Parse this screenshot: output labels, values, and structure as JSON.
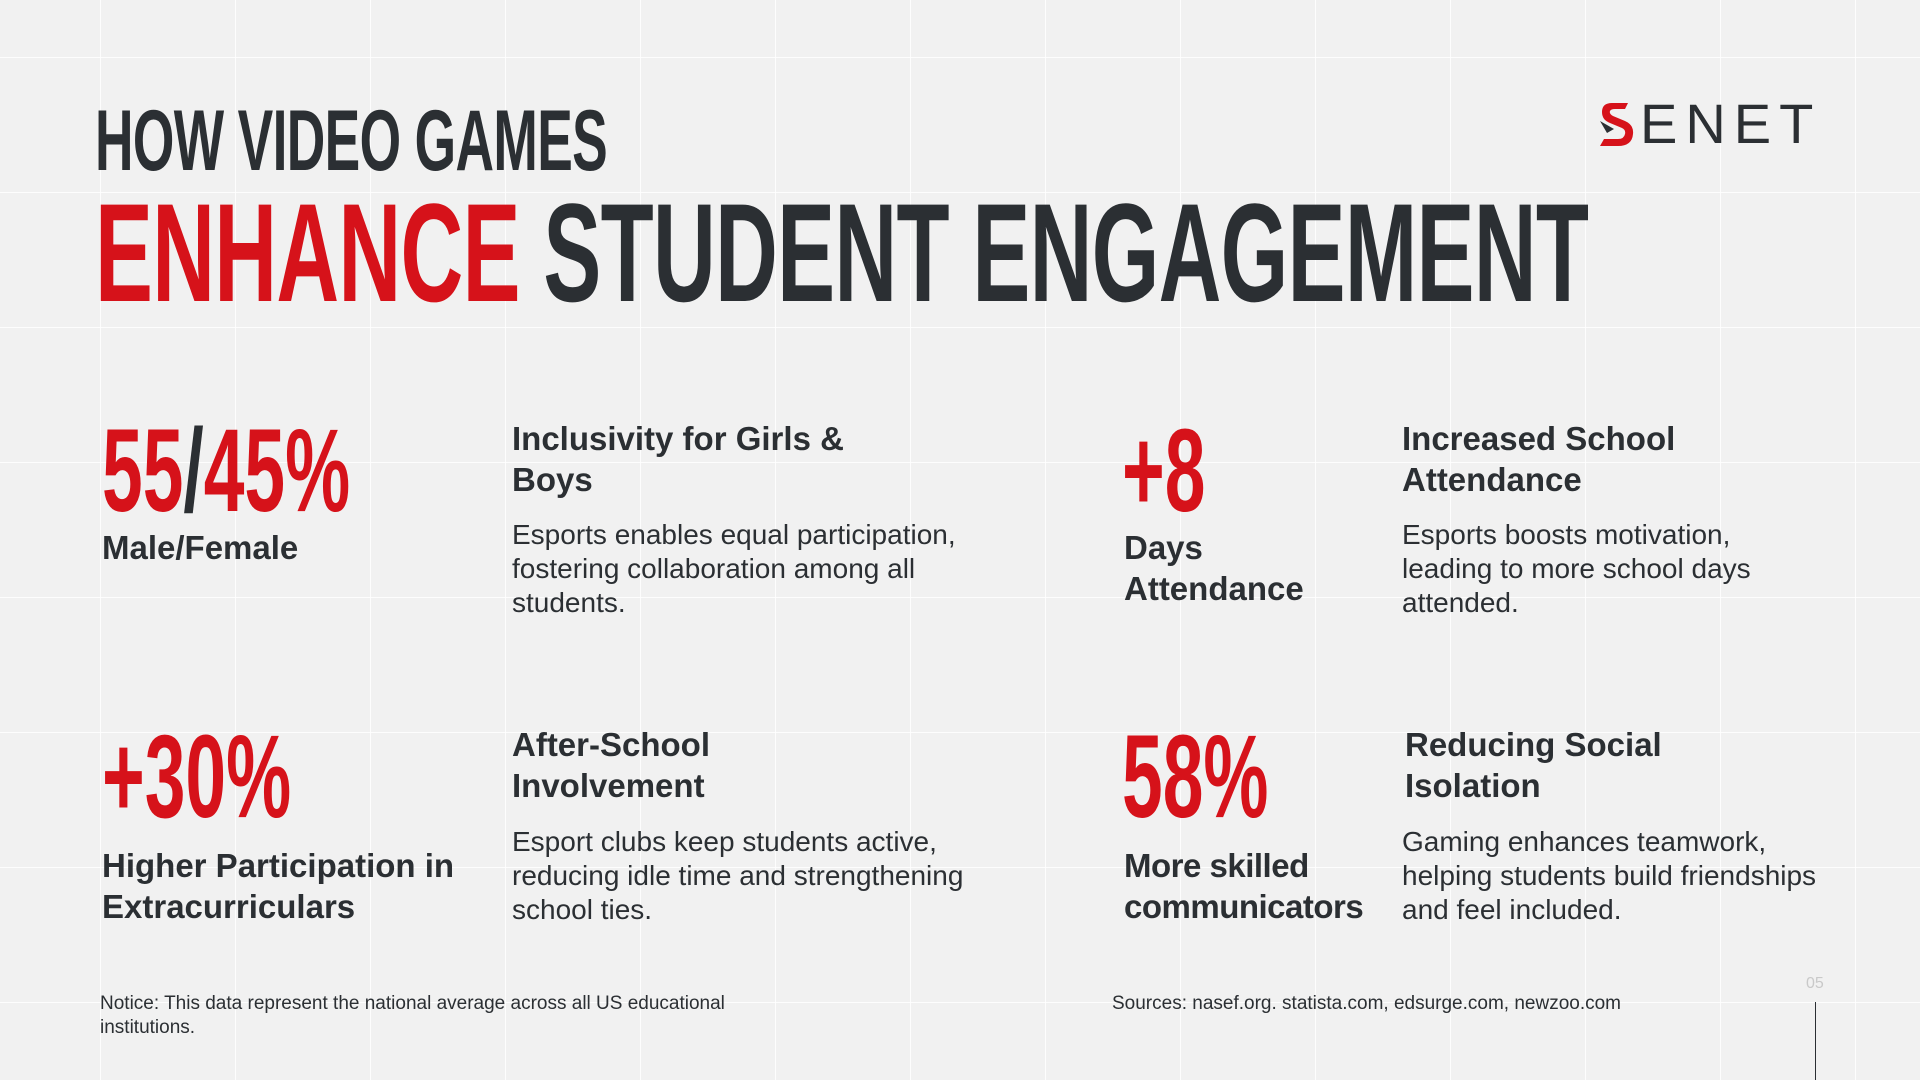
{
  "header": {
    "title_line1": "HOW VIDEO GAMES",
    "title_line2_accent": "ENHANCE",
    "title_line2_rest": "STUDENT ENGAGEMENT"
  },
  "logo": {
    "text": "ENET",
    "icon": "senet-s-logo-icon"
  },
  "stats": [
    {
      "figure_a": "55",
      "figure_sep": "/",
      "figure_b": "45%",
      "label": "Male/Female",
      "title": "Inclusivity for Girls & Boys",
      "description": "Esports enables equal participation, fostering collaboration among all students."
    },
    {
      "figure": "+8",
      "label": "Days Attendance",
      "title": "Increased School Attendance",
      "description": "Esports boosts motivation, leading to more school days attended."
    },
    {
      "figure": "+30%",
      "label": "Higher Participation in Extracurriculars",
      "title": "After-School Involvement",
      "description": "Esport clubs keep students active, reducing idle time and strengthening school ties."
    },
    {
      "figure": "58%",
      "label": "More skilled communicators",
      "title": "Reducing Social Isolation",
      "description": "Gaming enhances teamwork, helping students build friendships and feel included."
    }
  ],
  "footer": {
    "notice": "Notice: This data represent the national average across all US educational institutions.",
    "sources": "Sources: nasef.org. statista.com, edsurge.com, newzoo.com",
    "page_number": "05"
  },
  "colors": {
    "accent": "#d6121a",
    "text": "#2b2f33",
    "background": "#f1f1f1"
  }
}
